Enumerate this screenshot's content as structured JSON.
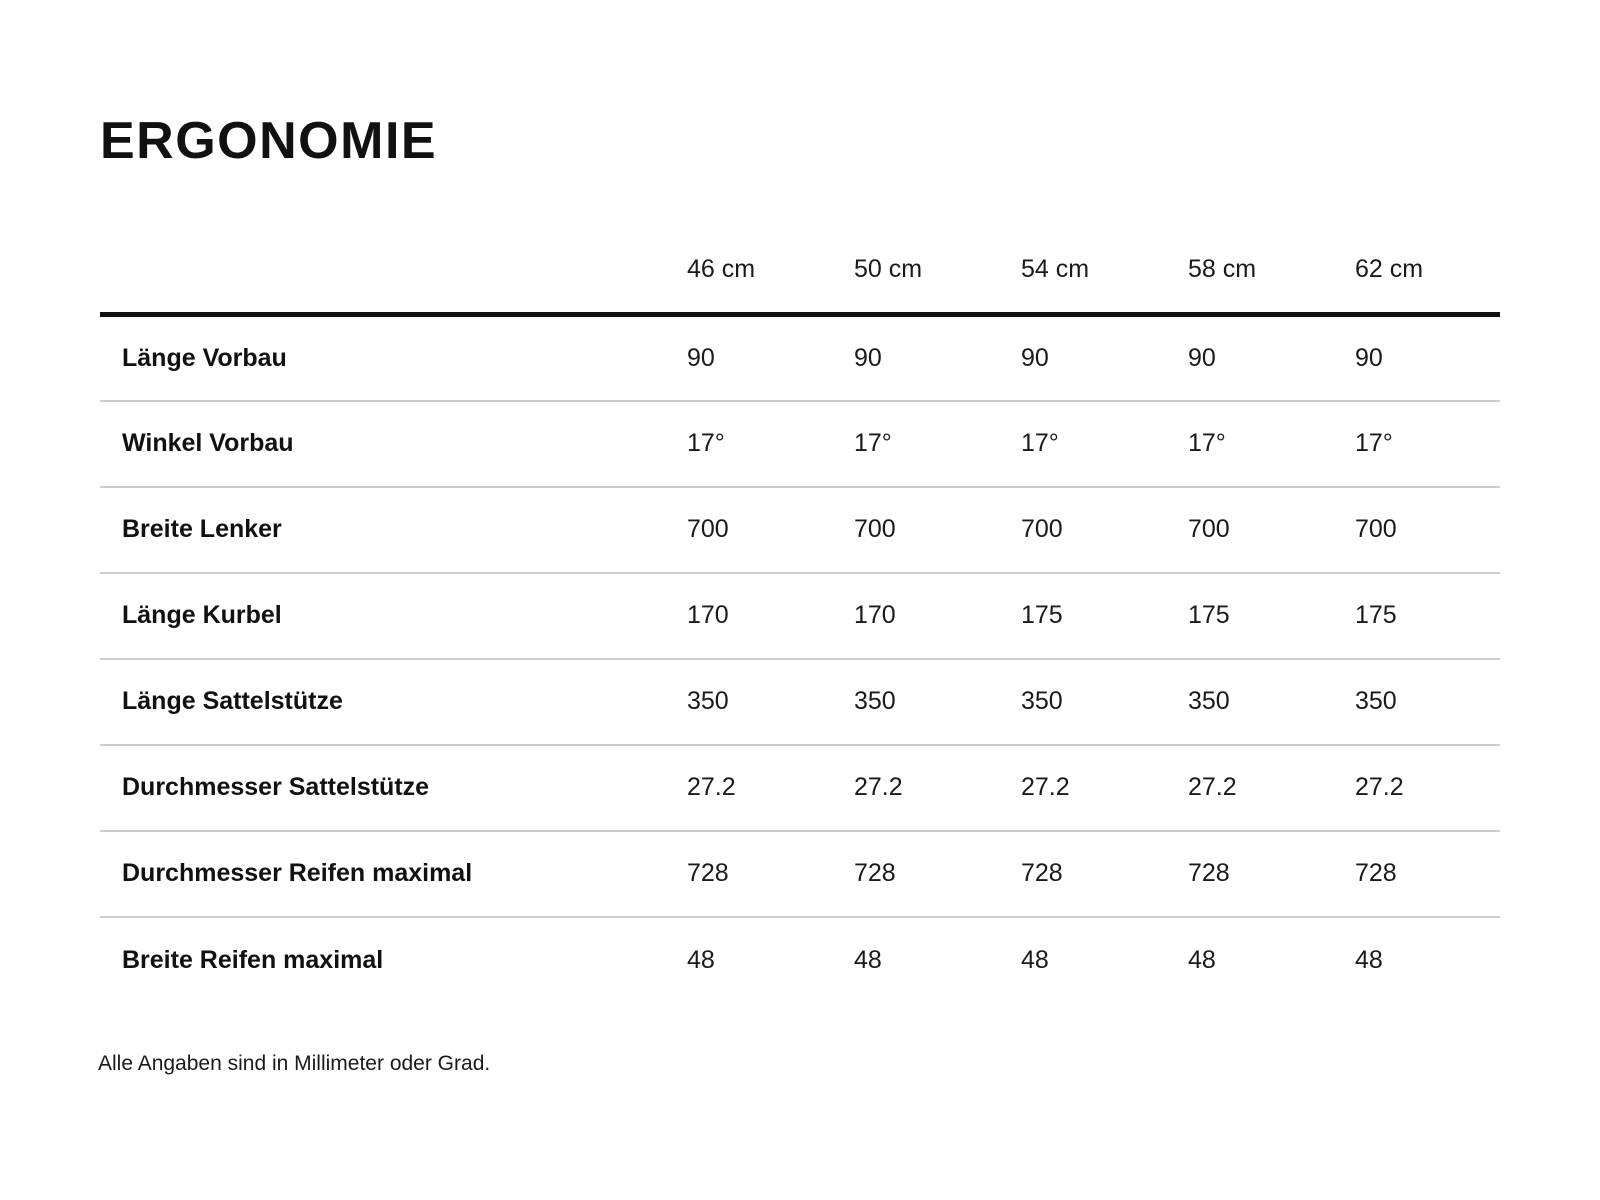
{
  "page": {
    "title": "ERGONOMIE",
    "footnote": "Alle Angaben sind in Millimeter oder Grad."
  },
  "chart_data": {
    "type": "table",
    "title": "ERGONOMIE",
    "columns": [
      "46 cm",
      "50 cm",
      "54 cm",
      "58 cm",
      "62 cm"
    ],
    "rows": [
      {
        "label": "Länge Vorbau",
        "values": [
          "90",
          "90",
          "90",
          "90",
          "90"
        ]
      },
      {
        "label": "Winkel Vorbau",
        "values": [
          "17°",
          "17°",
          "17°",
          "17°",
          "17°"
        ]
      },
      {
        "label": "Breite Lenker",
        "values": [
          "700",
          "700",
          "700",
          "700",
          "700"
        ]
      },
      {
        "label": "Länge Kurbel",
        "values": [
          "170",
          "170",
          "175",
          "175",
          "175"
        ]
      },
      {
        "label": "Länge Sattelstütze",
        "values": [
          "350",
          "350",
          "350",
          "350",
          "350"
        ]
      },
      {
        "label": "Durchmesser Sattelstütze",
        "values": [
          "27.2",
          "27.2",
          "27.2",
          "27.2",
          "27.2"
        ]
      },
      {
        "label": "Durchmesser Reifen maximal",
        "values": [
          "728",
          "728",
          "728",
          "728",
          "728"
        ]
      },
      {
        "label": "Breite Reifen maximal",
        "values": [
          "48",
          "48",
          "48",
          "48",
          "48"
        ]
      }
    ],
    "colors": {
      "background": "#ffffff",
      "text": "#1a1a1a",
      "header_rule": "#111111",
      "row_rule": "#cccccc"
    }
  }
}
